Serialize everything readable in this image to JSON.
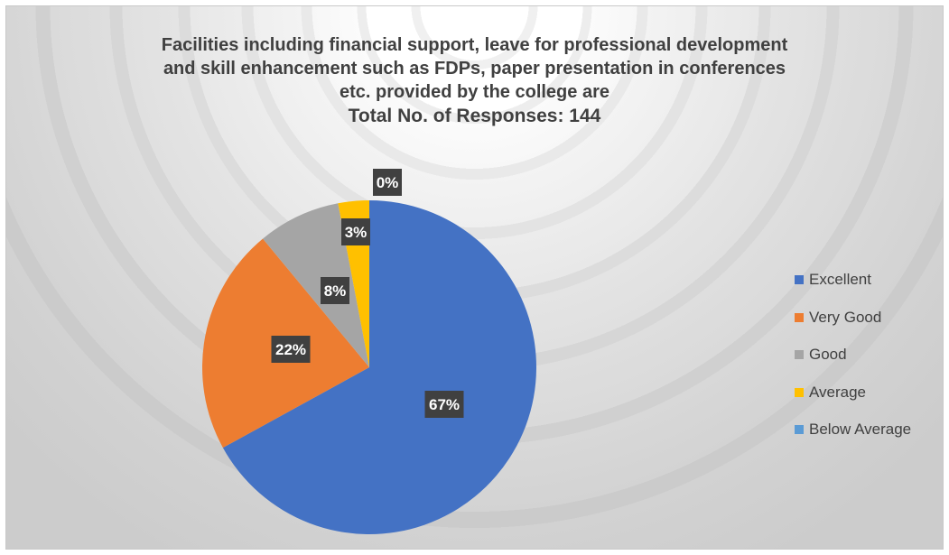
{
  "chart_data": {
    "type": "pie",
    "title_lines": [
      "Facilities including financial support, leave for professional development",
      "and skill enhancement such as FDPs, paper presentation in conferences",
      "etc. provided by the college are"
    ],
    "subtitle": "Total No. of Responses: 144",
    "categories": [
      "Excellent",
      "Very Good",
      "Good",
      "Average",
      "Below Average"
    ],
    "values": [
      67,
      22,
      8,
      3,
      0
    ],
    "data_labels": [
      "67%",
      "22%",
      "8%",
      "3%",
      "0%"
    ],
    "colors": [
      "#4472C4",
      "#ED7D31",
      "#A5A5A5",
      "#FFC000",
      "#5B9BD5"
    ],
    "legend_position": "right"
  }
}
